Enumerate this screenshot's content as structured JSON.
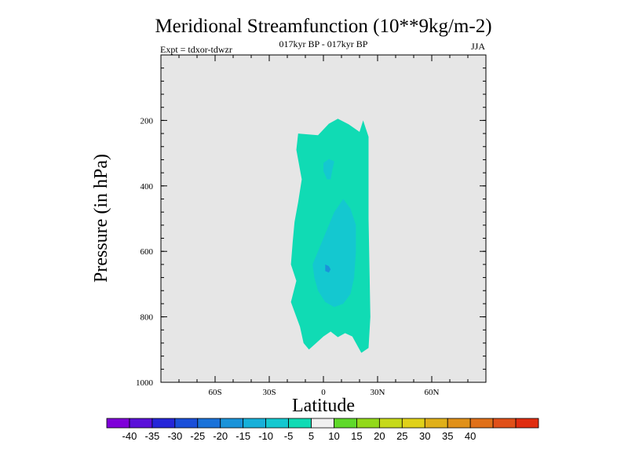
{
  "chart_data": {
    "type": "contour",
    "title": "Meridional Streamfunction (10**9kg/m-2)",
    "subtitle": "017kyr BP - 017kyr BP",
    "expt_label": "Expt = tdxor-tdwzr",
    "season": "JJA",
    "xlabel": "Latitude",
    "ylabel": "Pressure (in hPa)",
    "xlim": [
      -90,
      90
    ],
    "ylim": [
      1000,
      0
    ],
    "x_ticks": [
      -60,
      -30,
      0,
      30,
      60
    ],
    "x_tick_labels": [
      "60S",
      "30S",
      "0",
      "30N",
      "60N"
    ],
    "y_ticks": [
      200,
      400,
      600,
      800,
      1000
    ],
    "y_tick_labels": [
      "200",
      "400",
      "600",
      "800",
      "1000"
    ],
    "background_color": "#e6e6e6",
    "levels": [
      -45,
      -40,
      -35,
      -30,
      -25,
      -20,
      -15,
      -10,
      -5,
      5,
      10,
      15,
      20,
      25,
      30,
      35,
      40,
      45
    ],
    "colorbar": {
      "colors": [
        "#7f00d9",
        "#5a10d9",
        "#2626d9",
        "#1a4fd9",
        "#1a72d9",
        "#1a93d9",
        "#17b0d9",
        "#14c8d0",
        "#10dbb4",
        "#f0f0f0",
        "#5fd92a",
        "#92d91a",
        "#c6d91a",
        "#e0d11a",
        "#e0b01a",
        "#e09019",
        "#e07019",
        "#e05019",
        "#e02d10"
      ],
      "tick_values": [
        -40,
        -35,
        -30,
        -25,
        -20,
        -15,
        -10,
        -5,
        5,
        10,
        15,
        20,
        25,
        30,
        35,
        40
      ],
      "tick_labels": [
        "-40",
        "-35",
        "-30",
        "-25",
        "-20",
        "-15",
        "-10",
        "-5",
        "5",
        "10",
        "15",
        "20",
        "25",
        "30",
        "35",
        "40"
      ]
    },
    "regions": [
      {
        "level_range": [
          -10,
          -5
        ],
        "color": "#10dbb4",
        "polygon": [
          [
            -14,
            240
          ],
          [
            -3,
            245
          ],
          [
            3,
            210
          ],
          [
            8,
            195
          ],
          [
            14,
            212
          ],
          [
            20,
            235
          ],
          [
            22,
            200
          ],
          [
            25,
            250
          ],
          [
            25,
            500
          ],
          [
            26,
            800
          ],
          [
            25,
            895
          ],
          [
            21,
            910
          ],
          [
            16,
            860
          ],
          [
            12,
            850
          ],
          [
            8,
            862
          ],
          [
            4,
            845
          ],
          [
            0,
            860
          ],
          [
            -4,
            880
          ],
          [
            -8,
            900
          ],
          [
            -11,
            880
          ],
          [
            -13,
            830
          ],
          [
            -15,
            800
          ],
          [
            -18,
            755
          ],
          [
            -15,
            690
          ],
          [
            -18,
            640
          ],
          [
            -17,
            570
          ],
          [
            -16,
            510
          ],
          [
            -14,
            450
          ],
          [
            -12,
            380
          ],
          [
            -15,
            290
          ]
        ]
      },
      {
        "level_range": [
          -15,
          -10
        ],
        "color": "#14c8d0",
        "polygon": [
          [
            11,
            440
          ],
          [
            15,
            470
          ],
          [
            18,
            520
          ],
          [
            18,
            600
          ],
          [
            17,
            680
          ],
          [
            15,
            730
          ],
          [
            11,
            760
          ],
          [
            6,
            770
          ],
          [
            1,
            755
          ],
          [
            -3,
            720
          ],
          [
            -5,
            680
          ],
          [
            -6,
            640
          ],
          [
            -3,
            600
          ],
          [
            0,
            560
          ],
          [
            3,
            520
          ],
          [
            6,
            480
          ]
        ]
      },
      {
        "level_range": [
          -15,
          -10
        ],
        "color": "#14c8d0",
        "polygon": [
          [
            0,
            330
          ],
          [
            3,
            318
          ],
          [
            6,
            325
          ],
          [
            5,
            350
          ],
          [
            4,
            380
          ],
          [
            2,
            380
          ],
          [
            0,
            355
          ]
        ]
      },
      {
        "level_range": [
          -20,
          -15
        ],
        "color": "#1a93d9",
        "polygon": [
          [
            1,
            640
          ],
          [
            3,
            645
          ],
          [
            4,
            655
          ],
          [
            3,
            665
          ],
          [
            1,
            660
          ]
        ]
      }
    ]
  }
}
